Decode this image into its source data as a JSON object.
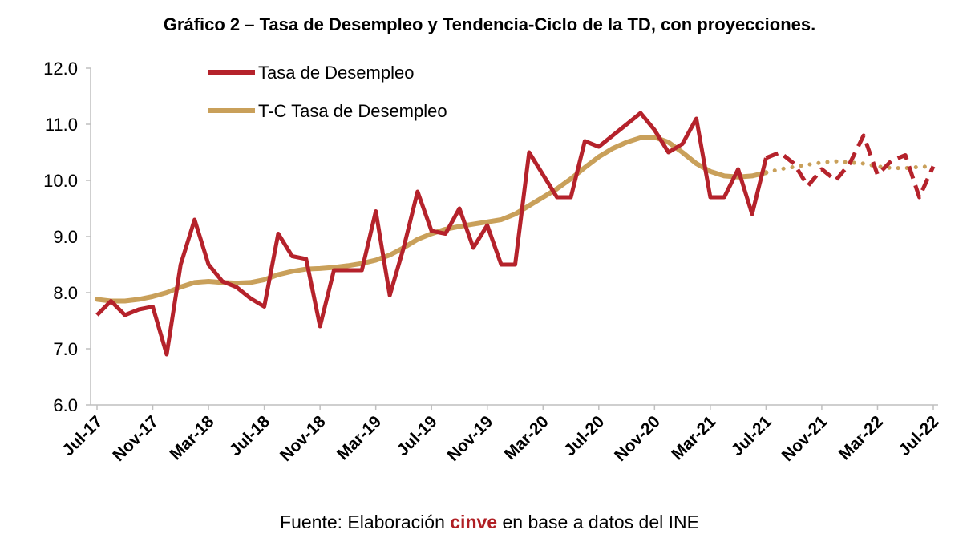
{
  "title": "Gráfico 2 – Tasa de Desempleo y Tendencia-Ciclo de la TD, con proyecciones.",
  "source": {
    "prefix": "Fuente: Elaboración ",
    "brand": "cinve",
    "suffix": " en base a datos del INE"
  },
  "colors": {
    "td": "#b5222b",
    "tc": "#c9a05a",
    "axis": "#bfbfbf",
    "brand": "#b01f24"
  },
  "chart_data": {
    "type": "line",
    "ylim": [
      6.0,
      12.0
    ],
    "yticks": [
      "6.0",
      "7.0",
      "8.0",
      "9.0",
      "10.0",
      "11.0",
      "12.0"
    ],
    "x": [
      "Jul-17",
      "Aug-17",
      "Sep-17",
      "Oct-17",
      "Nov-17",
      "Dec-17",
      "Jan-18",
      "Feb-18",
      "Mar-18",
      "Apr-18",
      "May-18",
      "Jun-18",
      "Jul-18",
      "Aug-18",
      "Sep-18",
      "Oct-18",
      "Nov-18",
      "Dec-18",
      "Jan-19",
      "Feb-19",
      "Mar-19",
      "Apr-19",
      "May-19",
      "Jun-19",
      "Jul-19",
      "Aug-19",
      "Sep-19",
      "Oct-19",
      "Nov-19",
      "Dec-19",
      "Jan-20",
      "Feb-20",
      "Mar-20",
      "Apr-20",
      "May-20",
      "Jun-20",
      "Jul-20",
      "Aug-20",
      "Sep-20",
      "Oct-20",
      "Nov-20",
      "Dec-20",
      "Jan-21",
      "Feb-21",
      "Mar-21",
      "Apr-21",
      "May-21",
      "Jun-21",
      "Jul-21",
      "Aug-21",
      "Sep-21",
      "Oct-21",
      "Nov-21",
      "Dec-21",
      "Jan-22",
      "Feb-22",
      "Mar-22",
      "Apr-22",
      "May-22",
      "Jun-22",
      "Jul-22"
    ],
    "xticks": [
      "Jul-17",
      "Nov-17",
      "Mar-18",
      "Jul-18",
      "Nov-18",
      "Mar-19",
      "Jul-19",
      "Nov-19",
      "Mar-20",
      "Jul-20",
      "Nov-20",
      "Mar-21",
      "Jul-21",
      "Nov-21",
      "Mar-22",
      "Jul-22"
    ],
    "projection_start": "Jul-21",
    "legend_position": "top-left",
    "series": [
      {
        "name": "Tasa de Desempleo",
        "values": [
          7.6,
          7.85,
          7.6,
          7.7,
          7.75,
          6.9,
          8.5,
          9.3,
          8.5,
          8.2,
          8.1,
          7.9,
          7.75,
          9.05,
          8.65,
          8.6,
          7.4,
          8.4,
          8.4,
          8.4,
          9.45,
          7.95,
          8.8,
          9.8,
          9.1,
          9.05,
          9.5,
          8.8,
          9.2,
          8.5,
          8.5,
          10.5,
          10.1,
          9.7,
          9.7,
          10.7,
          10.6,
          10.8,
          11.0,
          11.2,
          10.9,
          10.5,
          10.65,
          11.1,
          9.7,
          9.7,
          10.2,
          9.4,
          10.4,
          10.5,
          10.3,
          9.9,
          10.2,
          10.0,
          10.3,
          10.8,
          10.1,
          10.35,
          10.45,
          9.7,
          10.25
        ]
      },
      {
        "name": "T-C Tasa de Desempleo",
        "values": [
          7.88,
          7.85,
          7.85,
          7.88,
          7.93,
          8.0,
          8.1,
          8.18,
          8.2,
          8.18,
          8.17,
          8.18,
          8.23,
          8.32,
          8.38,
          8.42,
          8.43,
          8.45,
          8.48,
          8.52,
          8.58,
          8.67,
          8.8,
          8.95,
          9.05,
          9.13,
          9.18,
          9.22,
          9.26,
          9.3,
          9.4,
          9.55,
          9.7,
          9.85,
          10.03,
          10.23,
          10.42,
          10.57,
          10.68,
          10.76,
          10.77,
          10.68,
          10.5,
          10.3,
          10.16,
          10.08,
          10.06,
          10.08,
          10.14,
          10.2,
          10.24,
          10.28,
          10.32,
          10.34,
          10.32,
          10.3,
          10.25,
          10.22,
          10.22,
          10.24,
          10.25
        ]
      }
    ]
  }
}
